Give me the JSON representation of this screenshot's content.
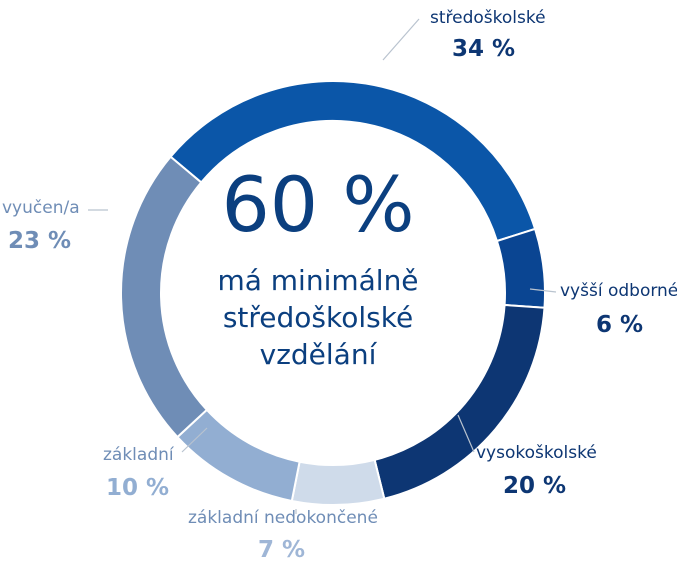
{
  "chart_data": {
    "type": "pie",
    "center": {
      "value": "60 %",
      "lines": [
        "má minimálně",
        "středoškolské",
        "vzdělání"
      ]
    },
    "slices": [
      {
        "name": "středoškolské",
        "value": 34,
        "label": "34 %",
        "color": "#0b56a8"
      },
      {
        "name": "vyšší odborné",
        "value": 6,
        "label": "6 %",
        "color": "#0a4592"
      },
      {
        "name": "vysokoškolské",
        "value": 20,
        "label": "20 %",
        "color": "#0d3673"
      },
      {
        "name": "základní nedokončené",
        "value": 7,
        "label": "7 %",
        "color": "#cfdbea"
      },
      {
        "name": "základní",
        "value": 10,
        "label": "10 %",
        "color": "#92aed2"
      },
      {
        "name": "vyučen/a",
        "value": 23,
        "label": "23 %",
        "color": "#6f8db6"
      }
    ]
  }
}
